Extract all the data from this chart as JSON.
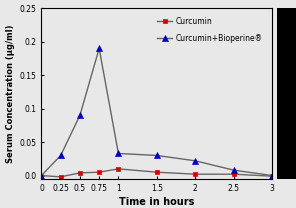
{
  "time": [
    0,
    0.25,
    0.5,
    0.75,
    1.0,
    1.5,
    2.0,
    2.5,
    3.0
  ],
  "curcumin": [
    0.0,
    -0.002,
    0.004,
    0.005,
    0.01,
    0.005,
    0.002,
    0.002,
    -0.001
  ],
  "curcumin_bioperine": [
    0.0,
    0.03,
    0.09,
    0.19,
    0.033,
    0.03,
    0.022,
    0.008,
    0.0
  ],
  "xlabel": "Time in hours",
  "ylabel": "Serum Concentration (µg/ml)",
  "xlim": [
    0,
    3.0
  ],
  "ylim": [
    -0.005,
    0.25
  ],
  "yticks": [
    0.0,
    0.05,
    0.1,
    0.15,
    0.2,
    0.25
  ],
  "xticks": [
    0,
    0.25,
    0.5,
    0.75,
    1.0,
    1.5,
    2.0,
    2.5,
    3.0
  ],
  "xtick_labels": [
    "0",
    "0.25",
    "0.5",
    "0.75",
    "1",
    "1.5",
    "2",
    "2.5",
    "3"
  ],
  "legend1": "Curcumin",
  "legend2": "Curcumin+Bioperine®",
  "color_curcumin": "#dd0000",
  "color_bioperine": "#0000cc",
  "line_color": "#666666",
  "marker_curcumin": "s",
  "marker_bioperine": "^",
  "bg_color": "#e8e8e8"
}
